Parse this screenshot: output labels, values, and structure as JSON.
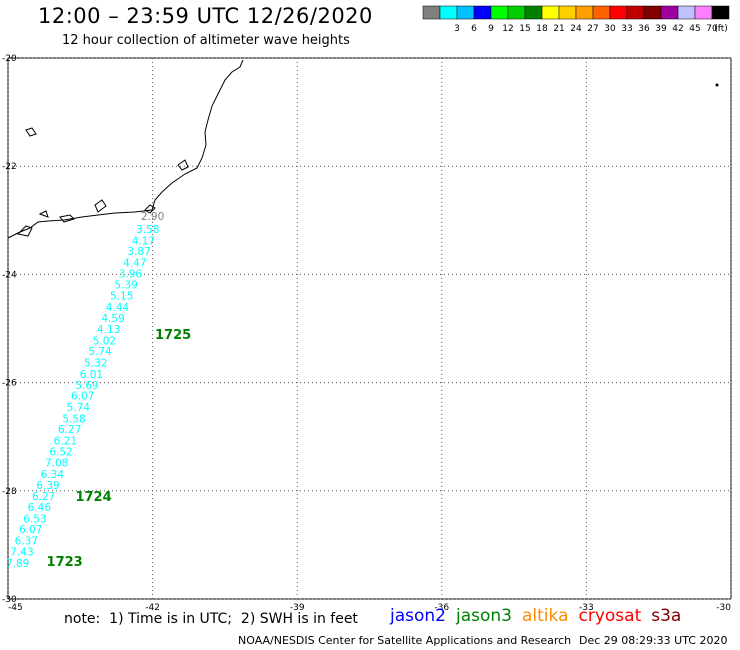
{
  "header": {
    "title": "12:00 – 23:59 UTC 12/26/2020",
    "subtitle": "12 hour collection of altimeter wave heights"
  },
  "colorbar": {
    "unit": "(ft)",
    "ticks": [
      "3",
      "6",
      "9",
      "12",
      "15",
      "18",
      "21",
      "24",
      "27",
      "30",
      "33",
      "36",
      "39",
      "42",
      "45",
      "70"
    ],
    "colors": [
      "#808080",
      "#00ffff",
      "#00c0ff",
      "#0000ff",
      "#00ff00",
      "#00d000",
      "#008000",
      "#ffff00",
      "#ffd000",
      "#ffa000",
      "#ff6000",
      "#ff0000",
      "#c00000",
      "#800000",
      "#a000a0",
      "#c0c0ff",
      "#ff80ff",
      "#000000"
    ]
  },
  "axes": {
    "lat_ticks": [
      "-20",
      "-22",
      "-24",
      "-26",
      "-28",
      "-30"
    ],
    "lon_ticks": [
      "-45",
      "-42",
      "-39",
      "-36",
      "-33",
      "-30"
    ]
  },
  "map_data": {
    "lat_range": [
      -30,
      -20
    ],
    "lon_range": [
      -45,
      -30
    ],
    "track": [
      {
        "lat": -22.92,
        "lon": -42.0,
        "value": "2.90",
        "color": "#808080"
      },
      {
        "lat": -23.16,
        "lon": -42.1,
        "value": "3.58",
        "color": "#00ffff"
      },
      {
        "lat": -23.37,
        "lon": -42.19,
        "value": "4.17",
        "color": "#00ffff"
      },
      {
        "lat": -23.57,
        "lon": -42.28,
        "value": "3.87",
        "color": "#00ffff"
      },
      {
        "lat": -23.78,
        "lon": -42.37,
        "value": "4.47",
        "color": "#00ffff"
      },
      {
        "lat": -23.98,
        "lon": -42.46,
        "value": "3.96",
        "color": "#00ffff"
      },
      {
        "lat": -24.19,
        "lon": -42.55,
        "value": "5.39",
        "color": "#00ffff"
      },
      {
        "lat": -24.39,
        "lon": -42.64,
        "value": "5.15",
        "color": "#00ffff"
      },
      {
        "lat": -24.6,
        "lon": -42.73,
        "value": "4.44",
        "color": "#00ffff"
      },
      {
        "lat": -24.81,
        "lon": -42.82,
        "value": "4.59",
        "color": "#00ffff"
      },
      {
        "lat": -25.01,
        "lon": -42.91,
        "value": "4.13",
        "color": "#00ffff"
      },
      {
        "lat": -25.22,
        "lon": -43.0,
        "value": "5.02",
        "color": "#00ffff"
      },
      {
        "lat": -25.42,
        "lon": -43.09,
        "value": "5.74",
        "color": "#00ffff"
      },
      {
        "lat": -25.63,
        "lon": -43.18,
        "value": "5.32",
        "color": "#00ffff"
      },
      {
        "lat": -25.84,
        "lon": -43.27,
        "value": "6.01",
        "color": "#00ffff"
      },
      {
        "lat": -26.04,
        "lon": -43.36,
        "value": "5.69",
        "color": "#00ffff"
      },
      {
        "lat": -26.24,
        "lon": -43.45,
        "value": "6.07",
        "color": "#00ffff"
      },
      {
        "lat": -26.45,
        "lon": -43.54,
        "value": "5.74",
        "color": "#00ffff"
      },
      {
        "lat": -26.66,
        "lon": -43.63,
        "value": "5.58",
        "color": "#00ffff"
      },
      {
        "lat": -26.86,
        "lon": -43.72,
        "value": "6.27",
        "color": "#00ffff"
      },
      {
        "lat": -27.07,
        "lon": -43.81,
        "value": "6.21",
        "color": "#00ffff"
      },
      {
        "lat": -27.27,
        "lon": -43.9,
        "value": "6.52",
        "color": "#00ffff"
      },
      {
        "lat": -27.48,
        "lon": -43.99,
        "value": "7.08",
        "color": "#00ffff"
      },
      {
        "lat": -27.69,
        "lon": -44.08,
        "value": "6.34",
        "color": "#00ffff"
      },
      {
        "lat": -27.89,
        "lon": -44.17,
        "value": "6.39",
        "color": "#00ffff"
      },
      {
        "lat": -28.1,
        "lon": -44.26,
        "value": "6.27",
        "color": "#00ffff"
      },
      {
        "lat": -28.3,
        "lon": -44.35,
        "value": "6.46",
        "color": "#00ffff"
      },
      {
        "lat": -28.51,
        "lon": -44.44,
        "value": "6.53",
        "color": "#00ffff"
      },
      {
        "lat": -28.71,
        "lon": -44.53,
        "value": "6.07",
        "color": "#00ffff"
      },
      {
        "lat": -28.92,
        "lon": -44.62,
        "value": "6.37",
        "color": "#00ffff"
      },
      {
        "lat": -29.12,
        "lon": -44.71,
        "value": "7.43",
        "color": "#00ffff"
      },
      {
        "lat": -29.33,
        "lon": -44.8,
        "value": "7.89",
        "color": "#00ffff"
      }
    ],
    "time_labels": [
      {
        "lat": -25.1,
        "lon": -41.95,
        "text": "1725",
        "color": "#008000"
      },
      {
        "lat": -28.1,
        "lon": -43.6,
        "text": "1724",
        "color": "#008000"
      },
      {
        "lat": -29.3,
        "lon": -44.2,
        "text": "1723",
        "color": "#008000"
      }
    ]
  },
  "footer": {
    "note": "note:  1) Time is in UTC;  2) SWH is in feet",
    "satellites": [
      {
        "name": "jason2",
        "color": "#0000ff"
      },
      {
        "name": "jason3",
        "color": "#008000"
      },
      {
        "name": "altika",
        "color": "#ff8c00"
      },
      {
        "name": "cryosat",
        "color": "#ff0000"
      },
      {
        "name": "s3a",
        "color": "#800000"
      }
    ],
    "credit": "NOAA/NESDIS Center for Satellite Applications and Research",
    "timestamp": "Dec 29 08:29:33 UTC 2020"
  }
}
